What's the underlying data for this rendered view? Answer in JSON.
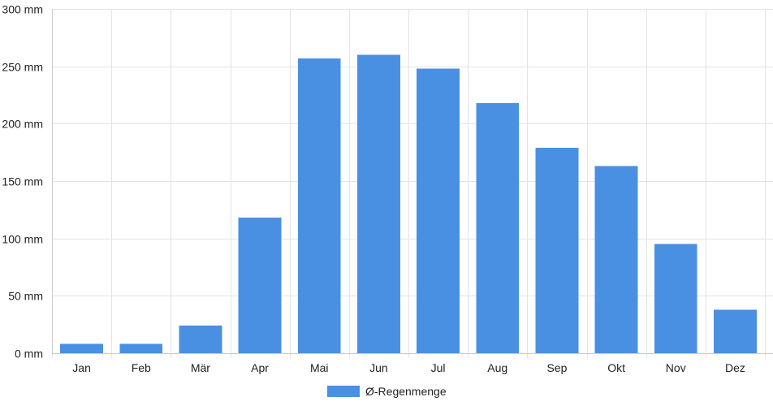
{
  "chart_data": {
    "type": "bar",
    "title": "",
    "xlabel": "",
    "ylabel": "",
    "categories": [
      "Jan",
      "Feb",
      "Mär",
      "Apr",
      "Mai",
      "Jun",
      "Jul",
      "Aug",
      "Sep",
      "Okt",
      "Nov",
      "Dez"
    ],
    "series": [
      {
        "name": "Ø-Regenmenge",
        "values": [
          8,
          8,
          24,
          118,
          257,
          260,
          248,
          218,
          179,
          163,
          95,
          38
        ],
        "color": "#4a90e2"
      }
    ],
    "ylim": [
      0,
      300
    ],
    "yticks": [
      0,
      50,
      100,
      150,
      200,
      250,
      300
    ],
    "ytick_labels": [
      "0 mm",
      "50 mm",
      "100 mm",
      "150 mm",
      "200 mm",
      "250 mm",
      "300 mm"
    ],
    "grid": true,
    "legend_position": "bottom-center"
  }
}
